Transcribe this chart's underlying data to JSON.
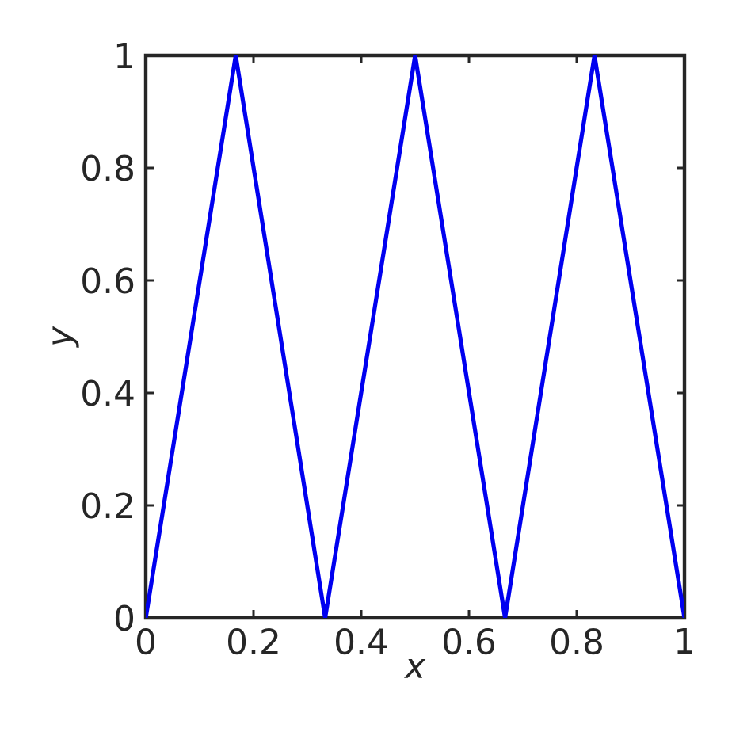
{
  "chart_data": {
    "type": "line",
    "xlabel": "x",
    "ylabel": "y",
    "x": [
      0,
      0.167,
      0.333,
      0.5,
      0.667,
      0.833,
      1
    ],
    "series": [
      {
        "color": "#0000f0",
        "values": [
          0,
          1,
          0,
          1,
          0,
          1,
          0
        ]
      }
    ],
    "xlim": [
      0,
      1
    ],
    "ylim": [
      0,
      1
    ],
    "xticks": [
      0,
      0.2,
      0.4,
      0.6,
      0.8,
      1
    ],
    "yticks": [
      0,
      0.2,
      0.4,
      0.6,
      0.8,
      1
    ],
    "grid": false,
    "marker": "none",
    "line_style": "solid"
  }
}
